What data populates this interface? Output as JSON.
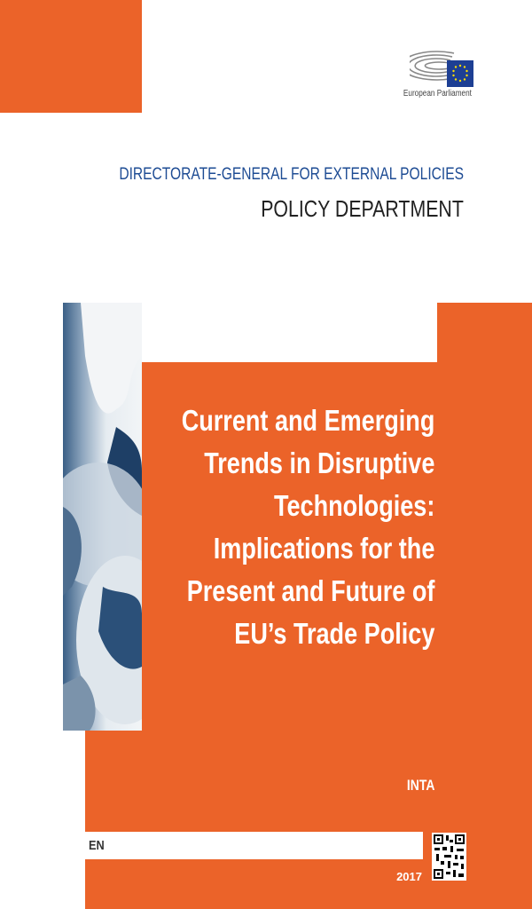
{
  "header": {
    "logo_text": "European Parliament",
    "directorate": "DIRECTORATE-GENERAL FOR EXTERNAL POLICIES",
    "department": "POLICY DEPARTMENT"
  },
  "title_lines": [
    "Current and Emerging",
    "Trends in Disruptive",
    "Technologies:",
    "Implications for the",
    "Present and Future of",
    "EU’s Trade Policy"
  ],
  "committee": "INTA",
  "language": "EN",
  "year": "2017",
  "colors": {
    "accent": "#EB6329",
    "directorate_blue": "#1E4C94",
    "eu_flag": "#1D3F94",
    "eu_stars": "#FFDD00"
  },
  "icons": {
    "logo": "european-parliament-hemicycle-logo",
    "cover_image": "globes-photo",
    "qr": "qr-code"
  }
}
